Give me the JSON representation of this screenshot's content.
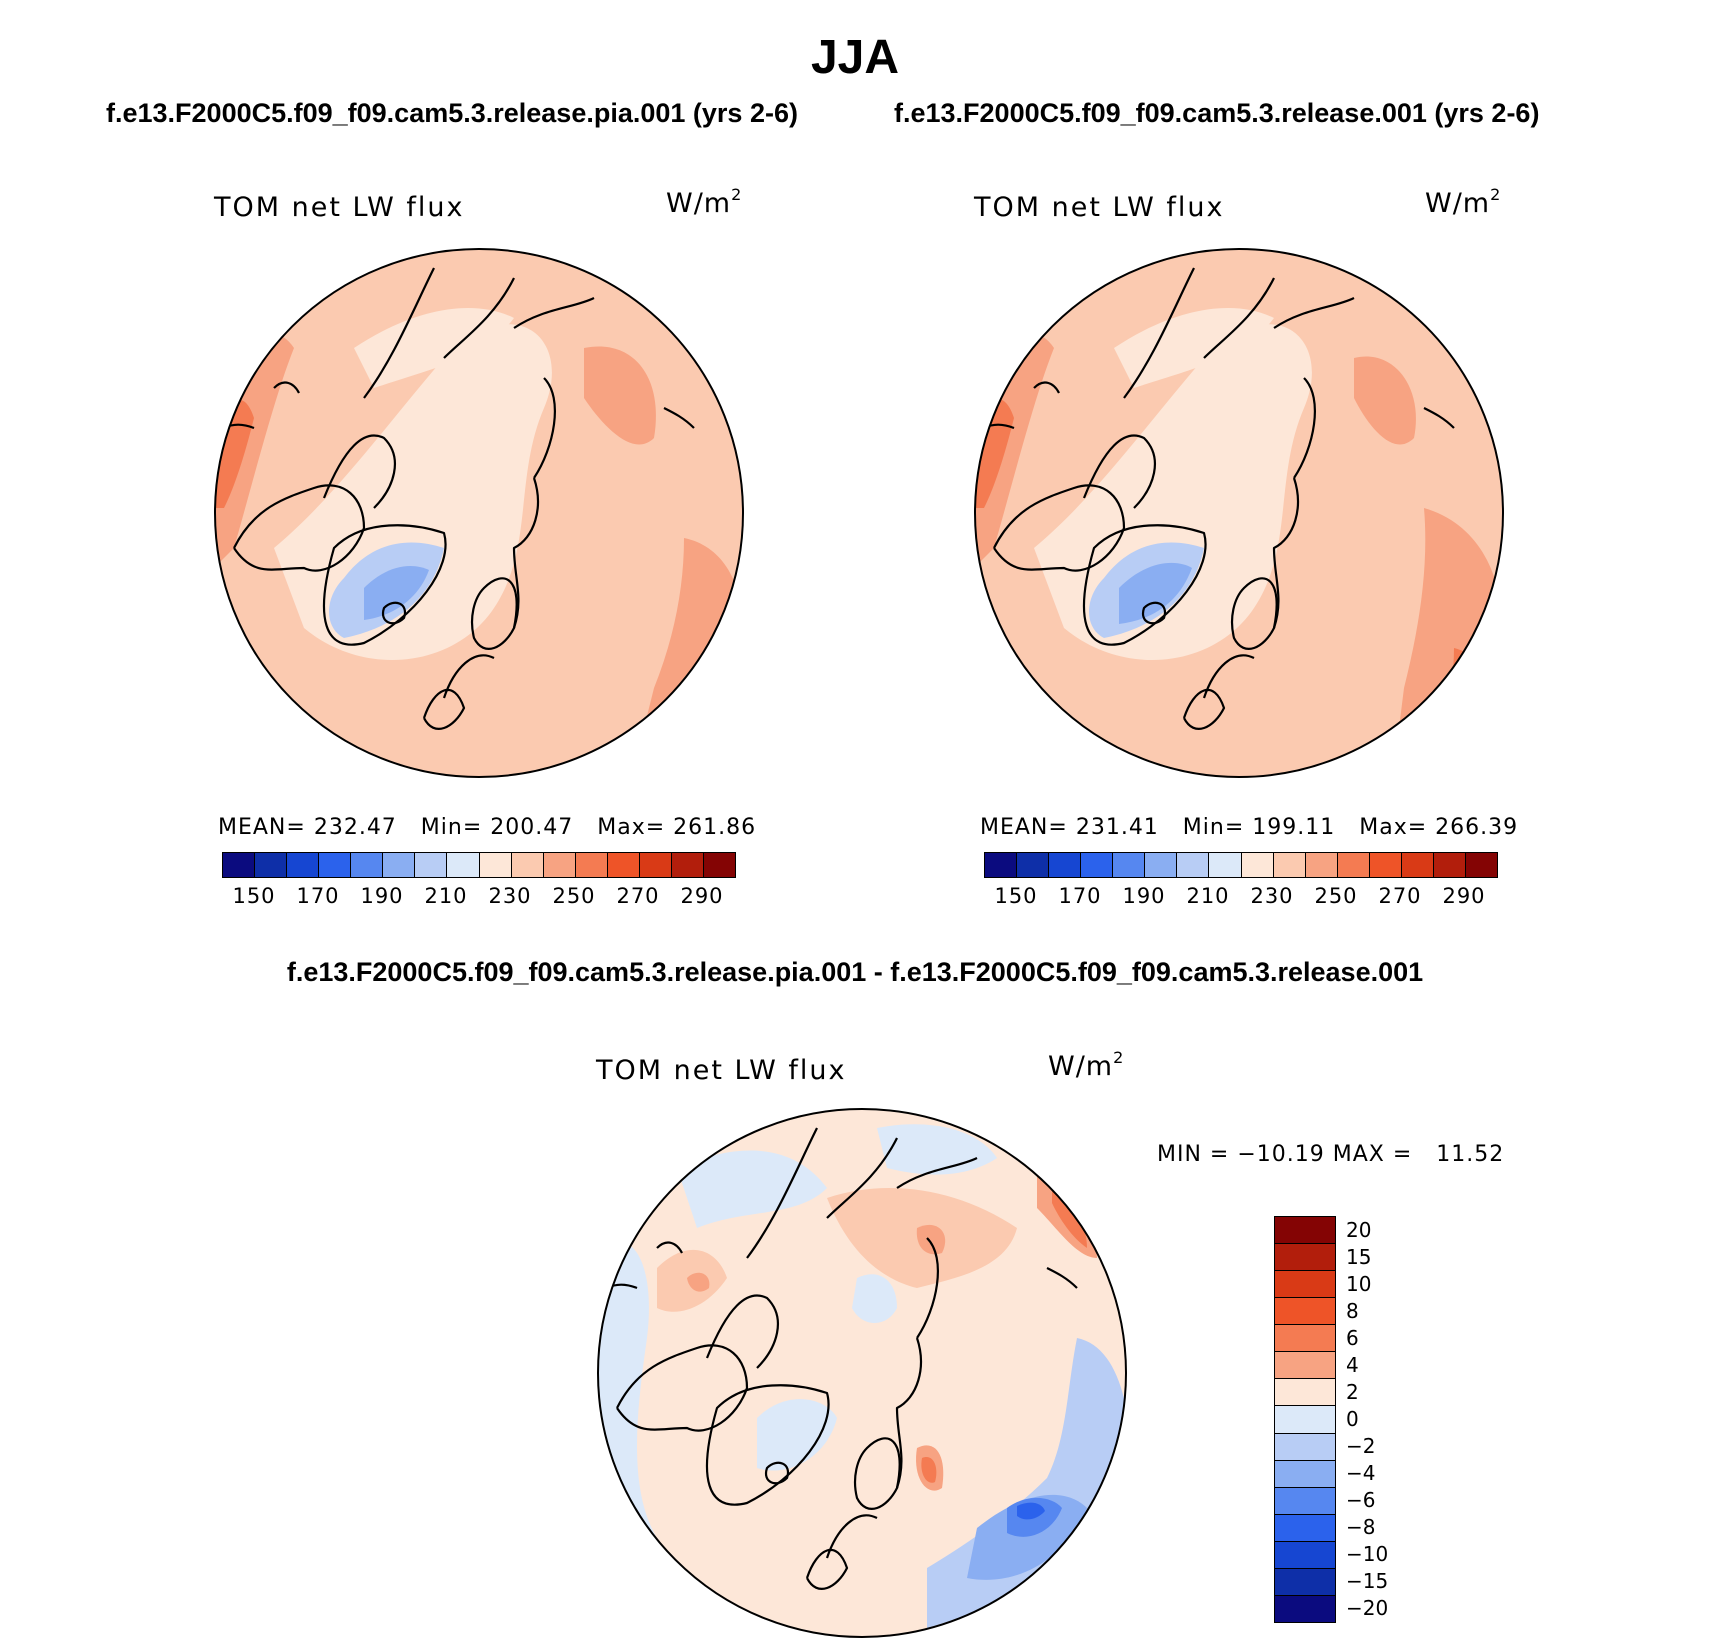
{
  "figure": {
    "season_title": "JJA",
    "case_a_title": "f.e13.F2000C5.f09_f09.cam5.3.release.pia.001 (yrs 2-6)",
    "case_b_title": "f.e13.F2000C5.f09_f09.cam5.3.release.001 (yrs 2-6)",
    "diff_title": "f.e13.F2000C5.f09_f09.cam5.3.release.pia.001 - f.e13.F2000C5.f09_f09.cam5.3.release.001"
  },
  "panels": [
    {
      "label": "TOM net LW flux",
      "units_base": "W/m",
      "units_exp": "2",
      "mean_label": "MEAN=",
      "mean": "232.47",
      "min_label": "Min=",
      "min": "200.47",
      "max_label": "Max=",
      "max": "261.86"
    },
    {
      "label": "TOM net LW flux",
      "units_base": "W/m",
      "units_exp": "2",
      "mean_label": "MEAN=",
      "mean": "231.41",
      "min_label": "Min=",
      "min": "199.11",
      "max_label": "Max=",
      "max": "266.39"
    },
    {
      "label": "TOM net LW flux",
      "units_base": "W/m",
      "units_exp": "2",
      "minmax_text": "MIN = −10.19 MAX =   11.52"
    }
  ],
  "colorbar_abs": {
    "colors": [
      "#0b0b7f",
      "#0e2fa8",
      "#1646d2",
      "#2b62ec",
      "#5687f0",
      "#8aaef2",
      "#b8cdf5",
      "#dce9f9",
      "#fde7d8",
      "#fbcab0",
      "#f7a382",
      "#f47b52",
      "#ee5428",
      "#d93a16",
      "#b21e0c",
      "#840404"
    ],
    "tick_labels": [
      "150",
      "170",
      "190",
      "210",
      "230",
      "250",
      "270",
      "290"
    ]
  },
  "colorbar_diff": {
    "colors_top_to_bottom": [
      "#840404",
      "#b21e0c",
      "#d93a16",
      "#ee5428",
      "#f47b52",
      "#f7a382",
      "#fde7d8",
      "#dce9f9",
      "#b8cdf5",
      "#8aaef2",
      "#5687f0",
      "#2b62ec",
      "#1646d2",
      "#0e2fa8",
      "#0b0b7f"
    ],
    "tick_labels": [
      "20",
      "15",
      "10",
      "8",
      "6",
      "4",
      "2",
      "0",
      "−2",
      "−4",
      "−6",
      "−8",
      "−10",
      "−15",
      "−20"
    ]
  },
  "map_colors": {
    "near_zero_warm": "#fde7d8",
    "light_warm": "#fbcab0",
    "mid_warm": "#f7a382",
    "strong_warm": "#f47b52",
    "hot": "#ee5428",
    "light_cool": "#dce9f9",
    "cool": "#b8cdf5",
    "mid_cool": "#8aaef2",
    "strong_cool": "#5687f0",
    "deep_cool": "#2b62ec"
  }
}
